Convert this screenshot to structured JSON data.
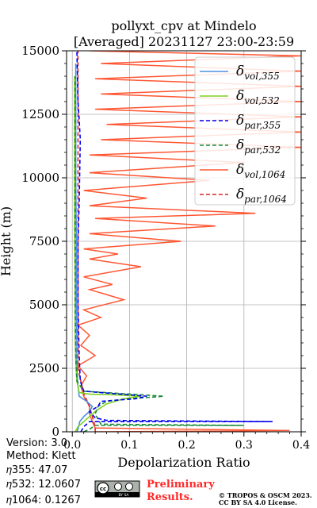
{
  "chart_data": {
    "type": "line",
    "title_line1": "pollyxt_cpv at Mindelo",
    "title_line2": "[Averaged] 20231127 23:00-23:59",
    "xlabel": "Depolarization Ratio",
    "ylabel": "Height (m)",
    "xlim": [
      -0.01,
      0.4
    ],
    "ylim": [
      0,
      15000
    ],
    "x_ticks": [
      "0.0",
      "0.1",
      "0.2",
      "0.3",
      "0.4"
    ],
    "y_ticks": [
      "0",
      "2500",
      "5000",
      "7500",
      "10000",
      "12500",
      "15000"
    ],
    "grid": true,
    "legend_position": "top-right",
    "series": [
      {
        "name": "δvol,355",
        "label_main": "δ",
        "label_sub": "vol,355",
        "color": "#4a90e2",
        "dash": "solid",
        "points": [
          [
            0.008,
            0
          ],
          [
            0.01,
            100
          ],
          [
            0.011,
            200
          ],
          [
            0.013,
            400
          ],
          [
            0.02,
            600
          ],
          [
            0.03,
            800
          ],
          [
            0.035,
            1000
          ],
          [
            0.025,
            1200
          ],
          [
            0.012,
            1400
          ],
          [
            0.01,
            1800
          ],
          [
            0.008,
            2500
          ],
          [
            0.008,
            3500
          ],
          [
            0.007,
            5000
          ],
          [
            0.007,
            7500
          ],
          [
            0.006,
            10000
          ],
          [
            0.006,
            12500
          ],
          [
            0.006,
            14500
          ]
        ]
      },
      {
        "name": "δvol,532",
        "label_main": "δ",
        "label_sub": "vol,532",
        "color": "#7ed321",
        "dash": "solid",
        "points": [
          [
            0.005,
            0
          ],
          [
            0.01,
            200
          ],
          [
            0.02,
            400
          ],
          [
            0.04,
            800
          ],
          [
            0.06,
            1100
          ],
          [
            0.09,
            1300
          ],
          [
            0.12,
            1400
          ],
          [
            0.08,
            1450
          ],
          [
            0.03,
            1480
          ],
          [
            0.012,
            1550
          ],
          [
            0.008,
            2000
          ],
          [
            0.006,
            2800
          ],
          [
            0.005,
            4000
          ],
          [
            0.005,
            6000
          ],
          [
            0.004,
            8000
          ],
          [
            0.004,
            10000
          ],
          [
            0.004,
            12000
          ],
          [
            0.004,
            14000
          ]
        ]
      },
      {
        "name": "δpar,355",
        "label_main": "δ",
        "label_sub": "par,355",
        "color": "#0000ee",
        "dash": "dashed",
        "points": [
          [
            0.015,
            0
          ],
          [
            0.02,
            200
          ],
          [
            0.03,
            400
          ],
          [
            0.35,
            400
          ],
          [
            0.06,
            450
          ],
          [
            0.04,
            550
          ],
          [
            0.03,
            800
          ],
          [
            0.045,
            1000
          ],
          [
            0.05,
            1200
          ],
          [
            0.11,
            1300
          ],
          [
            0.13,
            1400
          ],
          [
            0.02,
            1600
          ],
          [
            0.014,
            2000
          ],
          [
            0.012,
            3000
          ],
          [
            0.01,
            5000
          ],
          [
            0.01,
            7500
          ],
          [
            0.012,
            9000
          ],
          [
            0.014,
            11500
          ],
          [
            0.012,
            12300
          ],
          [
            0.01,
            13000
          ],
          [
            0.008,
            15000
          ]
        ]
      },
      {
        "name": "δpar,532",
        "label_main": "δ",
        "label_sub": "par,532",
        "color": "#1a8a3a",
        "dash": "dashed",
        "points": [
          [
            0.02,
            0
          ],
          [
            0.03,
            100
          ],
          [
            0.04,
            250
          ],
          [
            0.3,
            250
          ],
          [
            0.05,
            300
          ],
          [
            0.04,
            700
          ],
          [
            0.045,
            1000
          ],
          [
            0.06,
            1200
          ],
          [
            0.1,
            1300
          ],
          [
            0.16,
            1400
          ],
          [
            0.02,
            1600
          ],
          [
            0.008,
            2000
          ],
          [
            0.006,
            3000
          ],
          [
            0.005,
            5000
          ],
          [
            0.005,
            8000
          ],
          [
            0.005,
            11000
          ],
          [
            0.005,
            14000
          ]
        ]
      },
      {
        "name": "δvol,1064",
        "label_main": "δ",
        "label_sub": "vol,1064",
        "color": "#ff5733",
        "dash": "solid",
        "points": [
          [
            0.04,
            0
          ],
          [
            0.38,
            50
          ],
          [
            0.04,
            150
          ],
          [
            0.035,
            400
          ],
          [
            0.03,
            700
          ],
          [
            0.03,
            1000
          ],
          [
            0.02,
            1400
          ],
          [
            0.015,
            1800
          ],
          [
            0.025,
            2200
          ],
          [
            0.01,
            2600
          ],
          [
            0.04,
            3000
          ],
          [
            0.015,
            3400
          ],
          [
            0.03,
            3800
          ],
          [
            0.01,
            4200
          ],
          [
            0.05,
            4500
          ],
          [
            0.02,
            4800
          ],
          [
            0.09,
            5200
          ],
          [
            0.03,
            5600
          ],
          [
            0.07,
            5800
          ],
          [
            0.02,
            6100
          ],
          [
            0.12,
            6500
          ],
          [
            0.03,
            6800
          ],
          [
            0.08,
            7000
          ],
          [
            0.02,
            7200
          ],
          [
            0.19,
            7500
          ],
          [
            0.03,
            7800
          ],
          [
            0.25,
            8100
          ],
          [
            0.04,
            8400
          ],
          [
            0.32,
            8600
          ],
          [
            0.03,
            8900
          ],
          [
            0.13,
            9200
          ],
          [
            0.02,
            9500
          ],
          [
            0.24,
            9900
          ],
          [
            0.03,
            10200
          ],
          [
            0.3,
            10600
          ],
          [
            0.03,
            10900
          ],
          [
            0.4,
            11200
          ],
          [
            0.05,
            11500
          ],
          [
            0.4,
            11800
          ],
          [
            0.06,
            12100
          ],
          [
            0.4,
            12400
          ],
          [
            0.04,
            12700
          ],
          [
            0.4,
            13000
          ],
          [
            0.05,
            13300
          ],
          [
            0.4,
            13600
          ],
          [
            0.04,
            13900
          ],
          [
            0.4,
            14200
          ],
          [
            0.05,
            14500
          ],
          [
            0.4,
            14800
          ],
          [
            0.03,
            15000
          ]
        ]
      },
      {
        "name": "δpar,1064",
        "label_main": "δ",
        "label_sub": "par,1064",
        "color": "#d62728",
        "dash": "dashed",
        "points": [
          [
            0.04,
            0
          ],
          [
            0.04,
            200
          ],
          [
            0.035,
            600
          ],
          [
            0.03,
            1000
          ],
          [
            0.02,
            1500
          ],
          [
            0.01,
            2500
          ],
          [
            0.01,
            5000
          ],
          [
            0.01,
            10000
          ],
          [
            0.01,
            15000
          ]
        ]
      }
    ]
  },
  "info": {
    "version": "Version: 3.0",
    "method": "Method: Klett",
    "eta355_label": "𝜂355:",
    "eta355_value": "47.07",
    "eta532_label": "𝜂532:",
    "eta532_value": "12.0607",
    "eta1064_label": "𝜂1064:",
    "eta1064_value": "0.1267"
  },
  "footer": {
    "preliminary_line1": "Preliminary",
    "preliminary_line2": "Results.",
    "copyright_line1": "© TROPOS & OSCM 2023.",
    "copyright_line2": "CC BY SA 4.0 License.",
    "license_badge_text": "cc",
    "license_badge_sub": "BY  SA"
  }
}
